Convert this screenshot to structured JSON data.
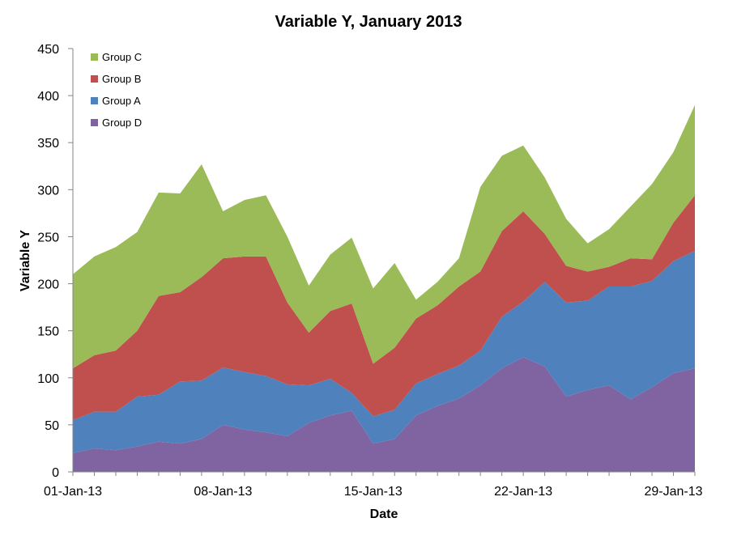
{
  "chart_data": {
    "type": "area",
    "stacked": true,
    "title": "Variable Y, January 2013",
    "xlabel": "Date",
    "ylabel": "Variable Y",
    "ylim": [
      0,
      450
    ],
    "yticks": [
      0,
      50,
      100,
      150,
      200,
      250,
      300,
      350,
      400,
      450
    ],
    "x_tick_labels": [
      {
        "day": 1,
        "label": "01-Jan-13"
      },
      {
        "day": 8,
        "label": "08-Jan-13"
      },
      {
        "day": 15,
        "label": "15-Jan-13"
      },
      {
        "day": 22,
        "label": "22-Jan-13"
      },
      {
        "day": 29,
        "label": "29-Jan-13"
      }
    ],
    "x": [
      1,
      2,
      3,
      4,
      5,
      6,
      7,
      8,
      9,
      10,
      11,
      12,
      13,
      14,
      15,
      16,
      17,
      18,
      19,
      20,
      21,
      22,
      23,
      24,
      25,
      26,
      27,
      28,
      29,
      30
    ],
    "legend_position": "top-left",
    "series": [
      {
        "name": "Group D",
        "color": "#8064A2",
        "values": [
          20,
          25,
          23,
          27,
          32,
          30,
          35,
          50,
          45,
          42,
          38,
          52,
          60,
          65,
          30,
          35,
          60,
          70,
          78,
          92,
          110,
          122,
          112,
          80,
          87,
          92,
          77,
          90,
          105,
          110
        ]
      },
      {
        "name": "Group A",
        "color": "#4F81BD",
        "values": [
          35,
          39,
          41,
          53,
          50,
          66,
          62,
          61,
          61,
          60,
          55,
          40,
          39,
          19,
          29,
          31,
          34,
          34,
          35,
          37,
          55,
          59,
          90,
          100,
          95,
          105,
          120,
          113,
          119,
          125
        ]
      },
      {
        "name": "Group B",
        "color": "#C0504D",
        "values": [
          55,
          60,
          65,
          70,
          105,
          95,
          110,
          116,
          123,
          127,
          87,
          56,
          72,
          95,
          56,
          66,
          69,
          73,
          84,
          84,
          91,
          96,
          51,
          39,
          31,
          21,
          30,
          23,
          41,
          59
        ]
      },
      {
        "name": "Group C",
        "color": "#9BBB59",
        "values": [
          100,
          105,
          110,
          105,
          110,
          105,
          120,
          50,
          60,
          65,
          70,
          50,
          60,
          70,
          80,
          90,
          20,
          25,
          30,
          90,
          80,
          70,
          60,
          50,
          30,
          40,
          55,
          80,
          75,
          96
        ]
      }
    ]
  }
}
